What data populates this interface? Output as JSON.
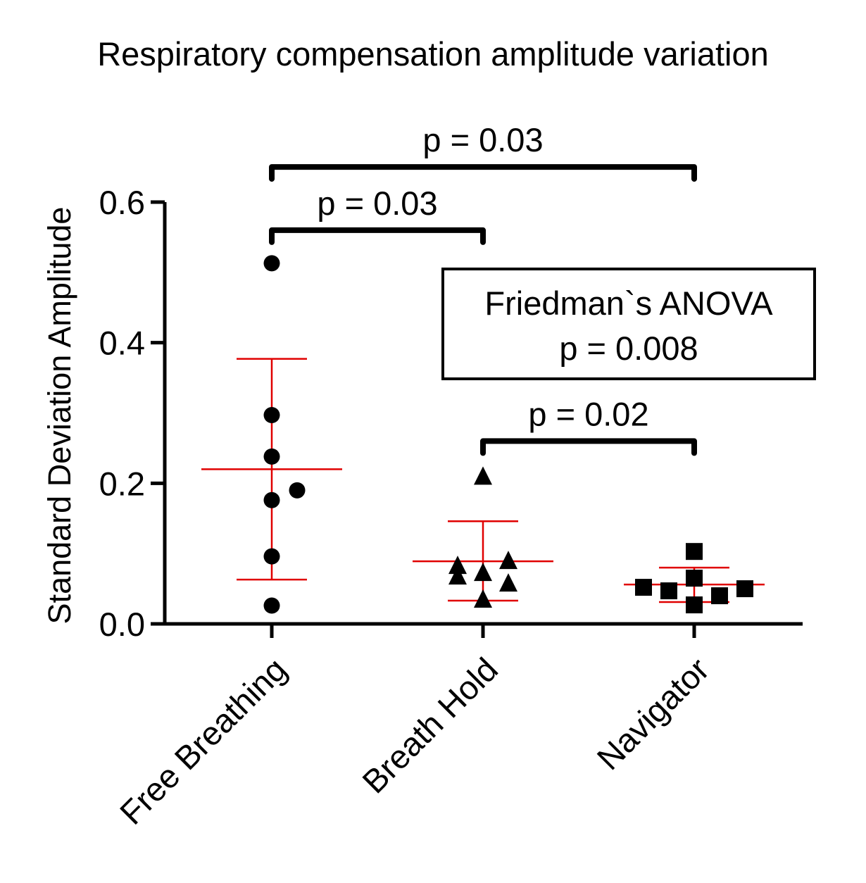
{
  "chart_data": {
    "type": "scatter",
    "title": "Respiratory compensation amplitude variation",
    "xlabel": "",
    "ylabel": "Standard Deviation Amplitude",
    "ylim": [
      0,
      0.6
    ],
    "yticks": [
      0.0,
      0.2,
      0.4,
      0.6
    ],
    "ytick_labels": [
      "0.0",
      "0.2",
      "0.4",
      "0.6"
    ],
    "grid": false,
    "categories": [
      "Free Breathing",
      "Breath Hold",
      "Navigator"
    ],
    "series": [
      {
        "name": "Free Breathing",
        "marker": "circle",
        "points": [
          {
            "offset": 0.0,
            "value": 0.513
          },
          {
            "offset": 0.0,
            "value": 0.297
          },
          {
            "offset": 0.0,
            "value": 0.238
          },
          {
            "offset": 0.0,
            "value": 0.176
          },
          {
            "offset": 0.12,
            "value": 0.19
          },
          {
            "offset": 0.0,
            "value": 0.096
          },
          {
            "offset": 0.0,
            "value": 0.026
          }
        ],
        "mean": 0.22,
        "sd_upper": 0.377,
        "sd_lower": 0.063
      },
      {
        "name": "Breath Hold",
        "marker": "triangle",
        "points": [
          {
            "offset": 0.0,
            "value": 0.21
          },
          {
            "offset": -0.12,
            "value": 0.083
          },
          {
            "offset": -0.12,
            "value": 0.068
          },
          {
            "offset": 0.0,
            "value": 0.073
          },
          {
            "offset": 0.12,
            "value": 0.09
          },
          {
            "offset": 0.12,
            "value": 0.058
          },
          {
            "offset": 0.0,
            "value": 0.035
          }
        ],
        "mean": 0.089,
        "sd_upper": 0.146,
        "sd_lower": 0.033
      },
      {
        "name": "Navigator",
        "marker": "square",
        "points": [
          {
            "offset": 0.0,
            "value": 0.103
          },
          {
            "offset": 0.0,
            "value": 0.065
          },
          {
            "offset": -0.24,
            "value": 0.052
          },
          {
            "offset": -0.12,
            "value": 0.047
          },
          {
            "offset": 0.12,
            "value": 0.04
          },
          {
            "offset": 0.24,
            "value": 0.05
          },
          {
            "offset": 0.0,
            "value": 0.027
          }
        ],
        "mean": 0.056,
        "sd_upper": 0.08,
        "sd_lower": 0.031
      }
    ],
    "comparisons": [
      {
        "from": "Free Breathing",
        "to": "Navigator",
        "label": "p = 0.03",
        "level": 0.65
      },
      {
        "from": "Free Breathing",
        "to": "Breath Hold",
        "label": "p = 0.03",
        "level": 0.56
      },
      {
        "from": "Breath Hold",
        "to": "Navigator",
        "label": "p = 0.02",
        "level": 0.26
      }
    ],
    "annotation": {
      "line1": "Friedman`s ANOVA",
      "line2": "p = 0.008"
    },
    "colors": {
      "points": "#000000",
      "error_bars": "#e00000",
      "axes": "#000000"
    }
  }
}
